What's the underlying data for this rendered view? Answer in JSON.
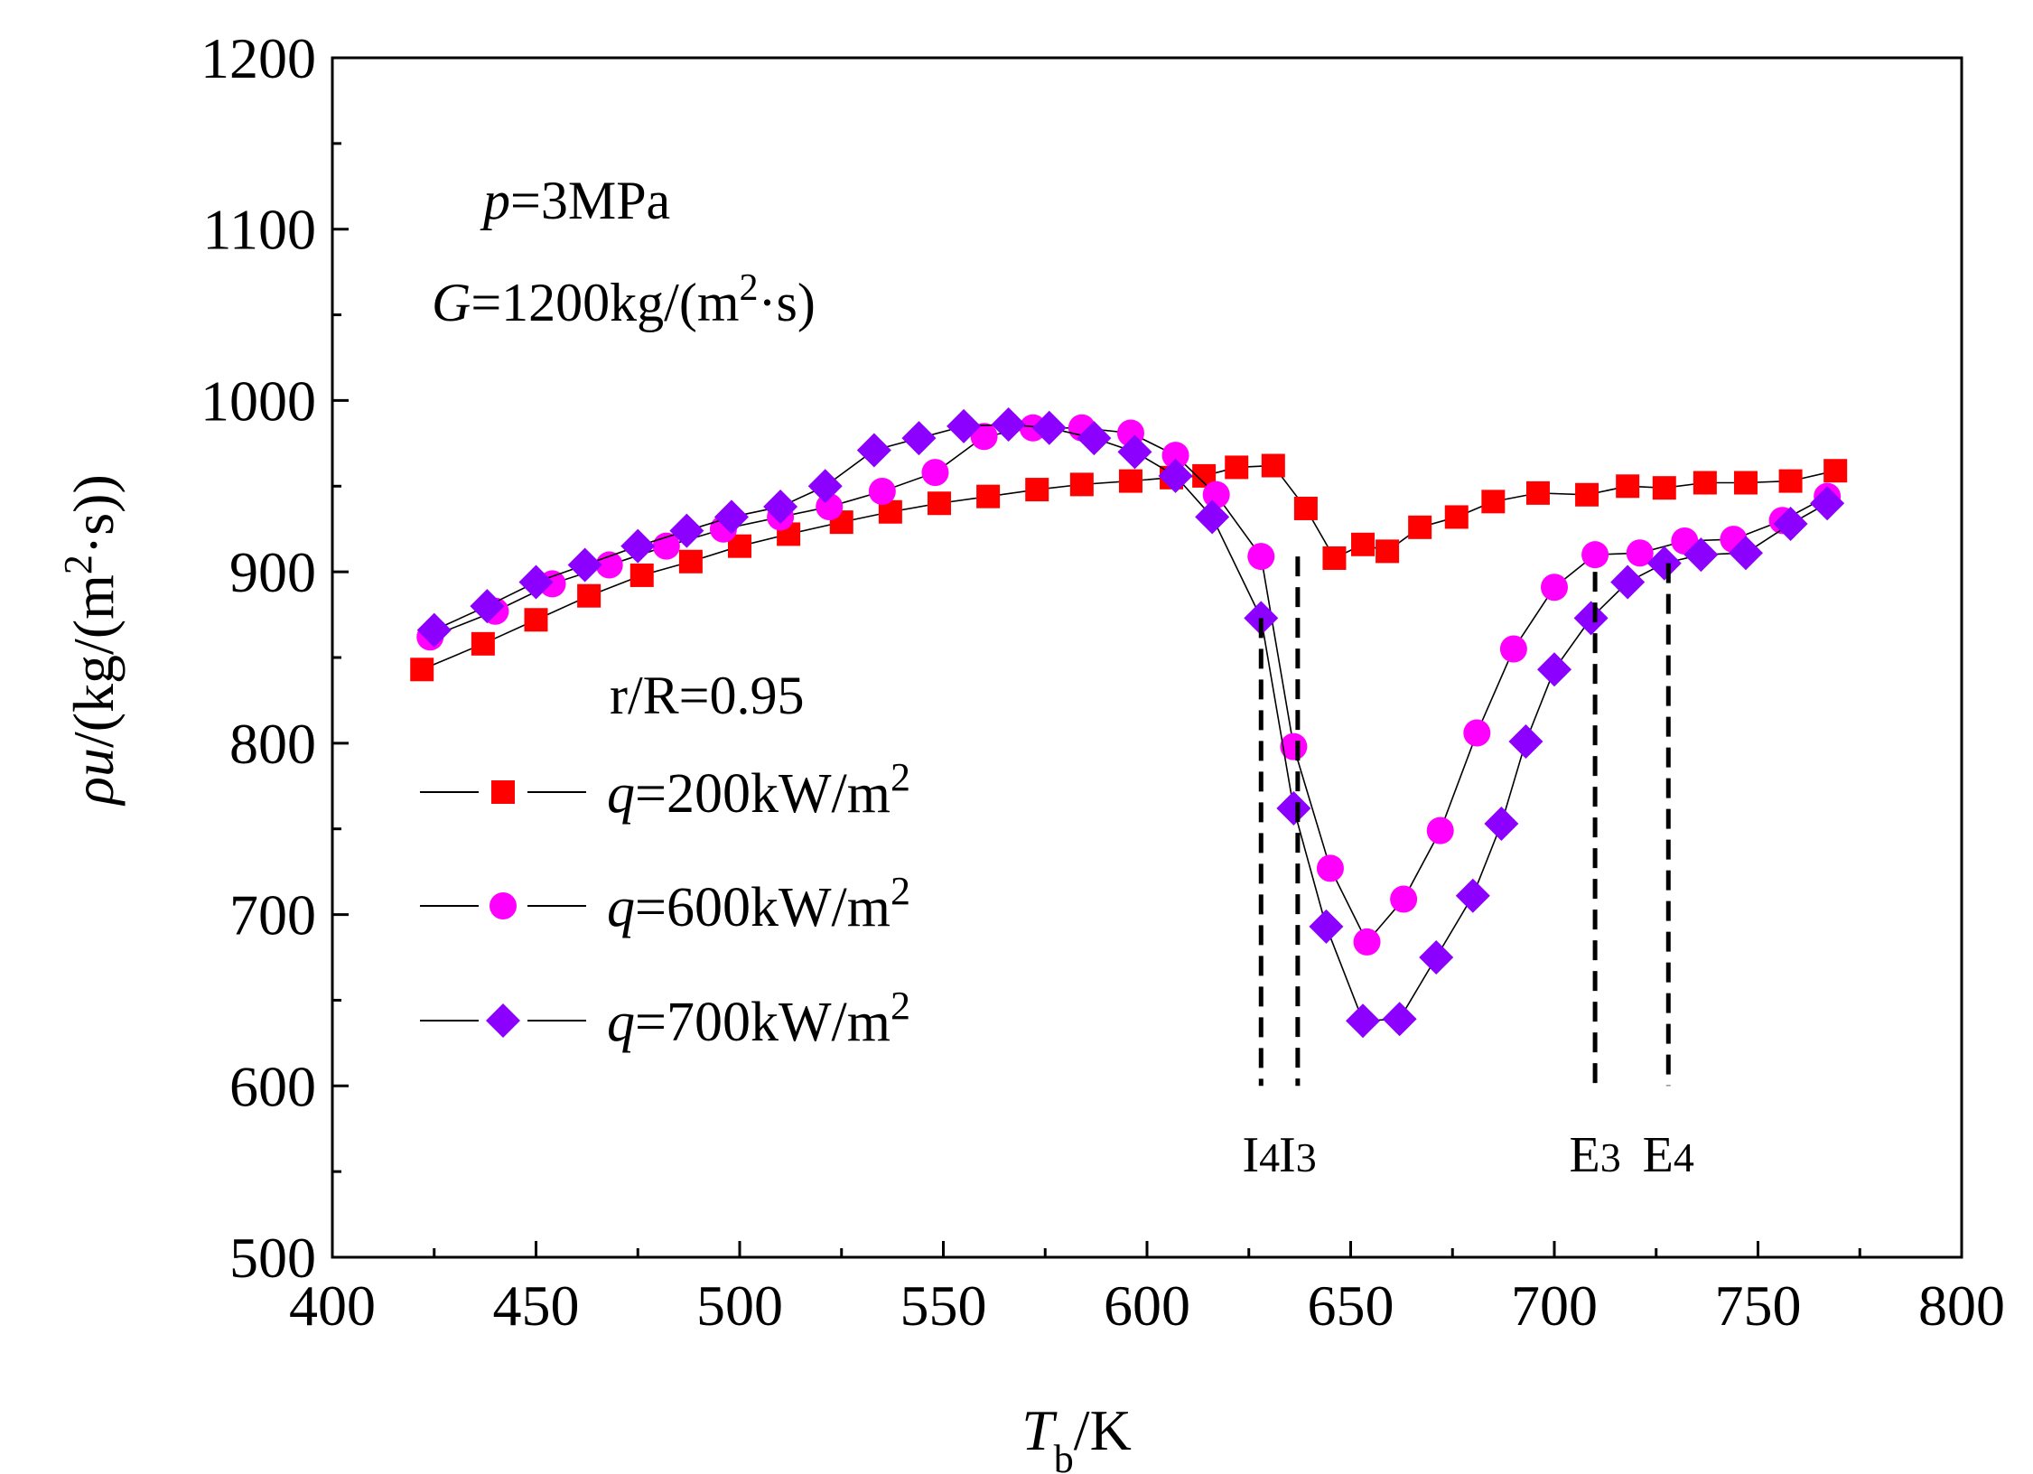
{
  "chart_data": {
    "type": "line",
    "xlabel": {
      "main": "T",
      "sub": "b",
      "unit": "/K"
    },
    "ylabel": {
      "main": "ρu",
      "unit": "/(kg/(m",
      "sup": "2",
      "tail": "·s))"
    },
    "xlim": [
      400,
      800
    ],
    "ylim": [
      500,
      1200
    ],
    "xticks": [
      400,
      450,
      500,
      550,
      600,
      650,
      700,
      750,
      800
    ],
    "yticks": [
      500,
      600,
      700,
      800,
      900,
      1000,
      1100,
      1200
    ],
    "annotations": {
      "pressure": {
        "var": "p",
        "text": "=3MPa"
      },
      "mass_flux": {
        "var": "G",
        "text": "=1200kg/(m",
        "sup": "2",
        "tail": "·s)"
      },
      "radius": "r/R=0.95"
    },
    "series": [
      {
        "name": "q=200kW/m2",
        "legend": {
          "var": "q",
          "text": "=200kW/m",
          "sup": "2"
        },
        "marker": "square",
        "color": "#ff0000",
        "x": [
          422,
          437,
          450,
          463,
          476,
          488,
          500,
          512,
          525,
          537,
          549,
          561,
          573,
          584,
          596,
          606,
          614,
          622,
          631,
          639,
          646,
          653,
          659,
          667,
          676,
          685,
          696,
          708,
          718,
          727,
          737,
          747,
          758,
          769
        ],
        "y": [
          843,
          858,
          872,
          886,
          898,
          906,
          915,
          922,
          929,
          935,
          940,
          944,
          948,
          951,
          953,
          955,
          956,
          961,
          962,
          937,
          908,
          916,
          912,
          926,
          932,
          941,
          946,
          945,
          950,
          949,
          952,
          952,
          953,
          959
        ]
      },
      {
        "name": "q=600kW/m2",
        "legend": {
          "var": "q",
          "text": "=600kW/m",
          "sup": "2"
        },
        "marker": "circle",
        "color": "#ff00ff",
        "x": [
          424,
          440,
          454,
          468,
          482,
          496,
          510,
          522,
          535,
          548,
          560,
          572,
          584,
          596,
          607,
          617,
          628,
          636,
          645,
          654,
          663,
          672,
          681,
          690,
          700,
          710,
          721,
          732,
          744,
          756,
          767
        ],
        "y": [
          862,
          877,
          893,
          904,
          915,
          925,
          932,
          938,
          947,
          958,
          979,
          984,
          984,
          981,
          968,
          945,
          909,
          798,
          727,
          684,
          709,
          749,
          806,
          855,
          891,
          910,
          911,
          918,
          919,
          930,
          944
        ]
      },
      {
        "name": "q=700kW/m2",
        "legend": {
          "var": "q",
          "text": "=700kW/m",
          "sup": "2"
        },
        "marker": "diamond",
        "color": "#8b00ff",
        "x": [
          425,
          438,
          450,
          462,
          475,
          487,
          498,
          510,
          521,
          533,
          544,
          555,
          566,
          576,
          587,
          597,
          607,
          616,
          628,
          636,
          644,
          653,
          662,
          671,
          680,
          687,
          693,
          700,
          709,
          718,
          727,
          736,
          747,
          758,
          767
        ],
        "y": [
          866,
          880,
          894,
          904,
          915,
          924,
          932,
          938,
          950,
          971,
          978,
          985,
          986,
          984,
          978,
          970,
          956,
          932,
          873,
          762,
          693,
          638,
          639,
          675,
          711,
          753,
          801,
          843,
          873,
          894,
          905,
          910,
          911,
          928,
          940
        ]
      }
    ],
    "markers": [
      {
        "label": "I",
        "sub": "4",
        "x": 628,
        "y": 873
      },
      {
        "label": "I",
        "sub": "3",
        "x": 637,
        "y": 909
      },
      {
        "label": "E",
        "sub": "3",
        "x": 710,
        "y": 900
      },
      {
        "label": "E",
        "sub": "4",
        "x": 728,
        "y": 905
      }
    ]
  }
}
